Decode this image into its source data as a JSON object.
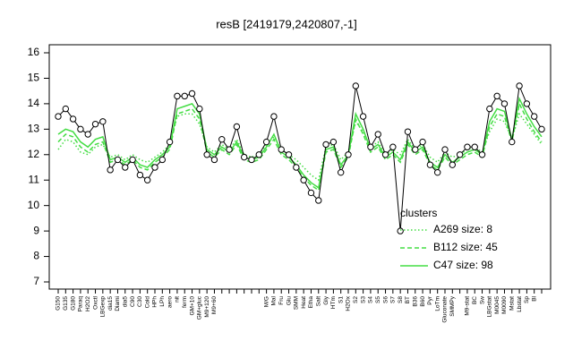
{
  "chart_data": {
    "type": "line",
    "title": "resB [2419179,2420807,-1]",
    "categories": [
      "G150",
      "G135",
      "G180",
      "Paraq",
      "H2O2",
      "Oxctl",
      "LBGexp",
      "dia15",
      "Diami",
      "dia5",
      "C90",
      "C30",
      "Cold",
      "HPh",
      "LPh",
      "aero",
      "nit",
      "ferm",
      "GM+10",
      "GM+gluc",
      "M9+120",
      "M9+60",
      null,
      null,
      null,
      null,
      null,
      null,
      "M/G",
      "Mal",
      "Fru",
      "Glu",
      "SMM",
      "Heat",
      "Etha",
      "Salt",
      "Gly",
      "HTm",
      "S1",
      "H2Ox",
      "S2",
      "S3",
      "S4",
      "S5",
      "S6",
      "S7",
      "S8",
      "BT",
      "B36",
      "B60",
      "Pyr",
      "LoTm",
      "Gluconate",
      "SMMPy",
      null,
      "M9-stat",
      "BC",
      "Sw",
      "LBGstat",
      "M0045",
      "M0090",
      "Mstat",
      "Lbstat",
      "Sp",
      "Bl",
      null
    ],
    "values": [
      13.5,
      13.8,
      13.4,
      13.0,
      12.8,
      13.2,
      13.3,
      11.4,
      11.8,
      11.5,
      11.8,
      11.2,
      11.0,
      11.5,
      11.8,
      12.5,
      14.3,
      14.3,
      14.4,
      13.8,
      12.0,
      11.8,
      12.6,
      12.2,
      13.1,
      11.9,
      11.8,
      12.0,
      12.5,
      13.5,
      12.2,
      12.0,
      11.5,
      11.0,
      10.5,
      10.2,
      12.4,
      12.5,
      11.3,
      12.0,
      14.7,
      13.5,
      12.3,
      12.8,
      12.0,
      12.3,
      9.0,
      12.9,
      12.2,
      12.5,
      11.6,
      11.3,
      12.2,
      11.6,
      12.0,
      12.3,
      12.3,
      12.0,
      13.8,
      14.3,
      14.0,
      12.5,
      14.7,
      14.0,
      13.5,
      13.0
    ],
    "color": "#000000",
    "legend_title": "clusters",
    "series": [
      {
        "name": "A269 size: 8",
        "color": "#44dd44",
        "style": "dotted",
        "values": [
          12.2,
          12.6,
          12.5,
          12.1,
          12.0,
          12.3,
          12.4,
          11.9,
          12.0,
          11.8,
          12.0,
          11.8,
          11.7,
          11.9,
          12.1,
          12.4,
          13.5,
          13.6,
          13.6,
          13.2,
          12.3,
          12.1,
          12.4,
          12.2,
          12.6,
          12.0,
          11.9,
          12.0,
          12.4,
          12.7,
          12.2,
          12.0,
          11.8,
          11.5,
          11.2,
          11.0,
          12.3,
          12.4,
          11.8,
          12.1,
          13.3,
          12.9,
          12.3,
          12.5,
          12.0,
          12.2,
          12.0,
          12.6,
          12.2,
          12.4,
          11.9,
          11.7,
          12.1,
          11.9,
          12.0,
          12.2,
          12.3,
          12.1,
          12.9,
          13.4,
          13.3,
          12.6,
          13.6,
          13.2,
          12.8,
          12.4
        ]
      },
      {
        "name": "B112 size: 45",
        "color": "#44dd44",
        "style": "dashed",
        "values": [
          12.5,
          12.8,
          12.7,
          12.3,
          12.1,
          12.4,
          12.5,
          11.7,
          11.8,
          11.6,
          11.8,
          11.5,
          11.4,
          11.7,
          11.9,
          12.2,
          13.6,
          13.7,
          13.8,
          13.4,
          12.1,
          11.9,
          12.2,
          12.0,
          12.4,
          11.8,
          11.7,
          11.8,
          12.2,
          12.6,
          12.0,
          11.8,
          11.5,
          11.1,
          10.8,
          10.6,
          12.1,
          12.2,
          11.5,
          11.9,
          13.4,
          12.8,
          12.1,
          12.3,
          11.8,
          12.0,
          11.7,
          12.4,
          12.0,
          12.2,
          11.6,
          11.4,
          11.9,
          11.6,
          11.8,
          12.0,
          12.1,
          11.9,
          13.1,
          13.6,
          13.5,
          12.5,
          14.0,
          13.4,
          12.9,
          12.5
        ]
      },
      {
        "name": "C47 size: 98",
        "color": "#44dd44",
        "style": "solid",
        "values": [
          12.8,
          13.0,
          12.9,
          12.5,
          12.3,
          12.6,
          12.7,
          11.8,
          11.9,
          11.7,
          11.9,
          11.6,
          11.5,
          11.8,
          12.0,
          12.3,
          13.8,
          13.9,
          14.0,
          13.6,
          12.2,
          12.0,
          12.3,
          12.1,
          12.5,
          11.9,
          11.8,
          11.9,
          12.3,
          12.8,
          12.1,
          11.9,
          11.6,
          11.2,
          10.9,
          10.7,
          12.2,
          12.3,
          11.6,
          12.0,
          13.6,
          13.0,
          12.2,
          12.4,
          11.9,
          12.1,
          11.8,
          12.5,
          12.1,
          12.3,
          11.7,
          11.5,
          12.0,
          11.7,
          11.9,
          12.1,
          12.2,
          12.0,
          13.3,
          13.8,
          13.7,
          12.6,
          14.2,
          13.6,
          13.1,
          12.7
        ]
      }
    ],
    "ylim": [
      7,
      16
    ],
    "yticks": [
      7,
      8,
      9,
      10,
      11,
      12,
      13,
      14,
      15,
      16
    ]
  }
}
